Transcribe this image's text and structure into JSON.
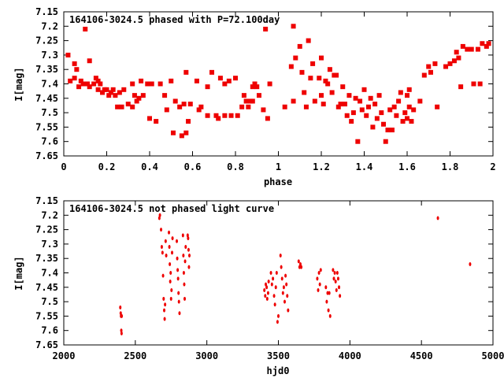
{
  "chart_data": [
    {
      "type": "scatter",
      "title": "164106-3024.5 phased with P=72.100day",
      "xlabel": "phase",
      "ylabel": "I[mag]",
      "xlim": [
        0,
        2
      ],
      "ylim": [
        7.65,
        7.15
      ],
      "y_inverted": true,
      "marker_color": "#ee0000",
      "x_ticks": [
        "0",
        "0.2",
        "0.4",
        "0.6",
        "0.8",
        "1",
        "1.2",
        "1.4",
        "1.6",
        "1.8",
        "2"
      ],
      "y_ticks": [
        "7.15",
        "7.2",
        "7.25",
        "7.3",
        "7.35",
        "7.4",
        "7.45",
        "7.5",
        "7.55",
        "7.6",
        "7.65"
      ],
      "points": [
        [
          0.02,
          7.3
        ],
        [
          0.03,
          7.39
        ],
        [
          0.05,
          7.38
        ],
        [
          0.05,
          7.33
        ],
        [
          0.06,
          7.35
        ],
        [
          0.07,
          7.41
        ],
        [
          0.08,
          7.39
        ],
        [
          0.09,
          7.4
        ],
        [
          0.1,
          7.21
        ],
        [
          0.11,
          7.4
        ],
        [
          0.12,
          7.32
        ],
        [
          0.12,
          7.41
        ],
        [
          0.14,
          7.4
        ],
        [
          0.15,
          7.38
        ],
        [
          0.16,
          7.39
        ],
        [
          0.16,
          7.42
        ],
        [
          0.17,
          7.4
        ],
        [
          0.18,
          7.43
        ],
        [
          0.19,
          7.42
        ],
        [
          0.2,
          7.42
        ],
        [
          0.21,
          7.44
        ],
        [
          0.22,
          7.43
        ],
        [
          0.23,
          7.42
        ],
        [
          0.24,
          7.44
        ],
        [
          0.25,
          7.48
        ],
        [
          0.26,
          7.43
        ],
        [
          0.27,
          7.48
        ],
        [
          0.28,
          7.42
        ],
        [
          0.3,
          7.47
        ],
        [
          0.32,
          7.4
        ],
        [
          0.32,
          7.48
        ],
        [
          0.33,
          7.44
        ],
        [
          0.34,
          7.46
        ],
        [
          0.35,
          7.45
        ],
        [
          0.36,
          7.39
        ],
        [
          0.37,
          7.44
        ],
        [
          0.39,
          7.4
        ],
        [
          0.4,
          7.52
        ],
        [
          0.41,
          7.4
        ],
        [
          0.43,
          7.53
        ],
        [
          0.45,
          7.4
        ],
        [
          0.47,
          7.44
        ],
        [
          0.48,
          7.49
        ],
        [
          0.5,
          7.39
        ],
        [
          0.51,
          7.57
        ],
        [
          0.52,
          7.46
        ],
        [
          0.54,
          7.48
        ],
        [
          0.55,
          7.58
        ],
        [
          0.56,
          7.47
        ],
        [
          0.57,
          7.36
        ],
        [
          0.57,
          7.57
        ],
        [
          0.58,
          7.53
        ],
        [
          0.59,
          7.47
        ],
        [
          0.62,
          7.39
        ],
        [
          0.63,
          7.49
        ],
        [
          0.64,
          7.48
        ],
        [
          0.67,
          7.51
        ],
        [
          0.67,
          7.41
        ],
        [
          0.69,
          7.36
        ],
        [
          0.71,
          7.51
        ],
        [
          0.72,
          7.52
        ],
        [
          0.73,
          7.38
        ],
        [
          0.75,
          7.51
        ],
        [
          0.75,
          7.4
        ],
        [
          0.77,
          7.39
        ],
        [
          0.78,
          7.51
        ],
        [
          0.8,
          7.38
        ],
        [
          0.81,
          7.51
        ],
        [
          0.83,
          7.48
        ],
        [
          0.84,
          7.44
        ],
        [
          0.85,
          7.46
        ],
        [
          0.86,
          7.48
        ],
        [
          0.87,
          7.46
        ],
        [
          0.88,
          7.41
        ],
        [
          0.88,
          7.46
        ],
        [
          0.89,
          7.4
        ],
        [
          0.9,
          7.41
        ],
        [
          0.91,
          7.44
        ],
        [
          0.93,
          7.49
        ],
        [
          0.94,
          7.21
        ],
        [
          0.95,
          7.52
        ],
        [
          0.96,
          7.4
        ],
        [
          1.03,
          7.48
        ],
        [
          1.06,
          7.34
        ],
        [
          1.07,
          7.2
        ],
        [
          1.07,
          7.46
        ],
        [
          1.08,
          7.31
        ],
        [
          1.1,
          7.27
        ],
        [
          1.11,
          7.36
        ],
        [
          1.12,
          7.43
        ],
        [
          1.13,
          7.48
        ],
        [
          1.14,
          7.25
        ],
        [
          1.15,
          7.38
        ],
        [
          1.16,
          7.33
        ],
        [
          1.17,
          7.46
        ],
        [
          1.19,
          7.38
        ],
        [
          1.2,
          7.31
        ],
        [
          1.2,
          7.44
        ],
        [
          1.21,
          7.47
        ],
        [
          1.22,
          7.39
        ],
        [
          1.23,
          7.4
        ],
        [
          1.24,
          7.35
        ],
        [
          1.25,
          7.43
        ],
        [
          1.26,
          7.37
        ],
        [
          1.27,
          7.37
        ],
        [
          1.28,
          7.48
        ],
        [
          1.29,
          7.47
        ],
        [
          1.3,
          7.41
        ],
        [
          1.31,
          7.47
        ],
        [
          1.32,
          7.51
        ],
        [
          1.33,
          7.44
        ],
        [
          1.34,
          7.53
        ],
        [
          1.35,
          7.5
        ],
        [
          1.36,
          7.45
        ],
        [
          1.37,
          7.6
        ],
        [
          1.38,
          7.46
        ],
        [
          1.39,
          7.49
        ],
        [
          1.4,
          7.42
        ],
        [
          1.41,
          7.51
        ],
        [
          1.42,
          7.48
        ],
        [
          1.43,
          7.45
        ],
        [
          1.44,
          7.55
        ],
        [
          1.45,
          7.47
        ],
        [
          1.46,
          7.52
        ],
        [
          1.47,
          7.44
        ],
        [
          1.48,
          7.5
        ],
        [
          1.49,
          7.54
        ],
        [
          1.5,
          7.6
        ],
        [
          1.51,
          7.56
        ],
        [
          1.52,
          7.49
        ],
        [
          1.53,
          7.56
        ],
        [
          1.54,
          7.48
        ],
        [
          1.55,
          7.51
        ],
        [
          1.56,
          7.46
        ],
        [
          1.57,
          7.43
        ],
        [
          1.58,
          7.53
        ],
        [
          1.59,
          7.5
        ],
        [
          1.6,
          7.44
        ],
        [
          1.6,
          7.52
        ],
        [
          1.61,
          7.42
        ],
        [
          1.61,
          7.48
        ],
        [
          1.62,
          7.53
        ],
        [
          1.63,
          7.49
        ],
        [
          1.66,
          7.46
        ],
        [
          1.68,
          7.37
        ],
        [
          1.7,
          7.34
        ],
        [
          1.71,
          7.36
        ],
        [
          1.73,
          7.33
        ],
        [
          1.74,
          7.48
        ],
        [
          1.78,
          7.34
        ],
        [
          1.8,
          7.33
        ],
        [
          1.82,
          7.32
        ],
        [
          1.83,
          7.29
        ],
        [
          1.84,
          7.31
        ],
        [
          1.85,
          7.41
        ],
        [
          1.86,
          7.27
        ],
        [
          1.88,
          7.28
        ],
        [
          1.9,
          7.28
        ],
        [
          1.91,
          7.4
        ],
        [
          1.93,
          7.28
        ],
        [
          1.94,
          7.4
        ],
        [
          1.95,
          7.26
        ],
        [
          1.97,
          7.27
        ],
        [
          1.98,
          7.26
        ]
      ]
    },
    {
      "type": "scatter",
      "title": "164106-3024.5 not phased light curve",
      "xlabel": "hjd0",
      "ylabel": "I[mag]",
      "xlim": [
        2000,
        5000
      ],
      "ylim": [
        7.65,
        7.15
      ],
      "y_inverted": true,
      "marker_color": "#ee0000",
      "x_ticks": [
        "2000",
        "2500",
        "3000",
        "3500",
        "4000",
        "4500",
        "5000"
      ],
      "y_ticks": [
        "7.15",
        "7.2",
        "7.25",
        "7.3",
        "7.35",
        "7.4",
        "7.45",
        "7.5",
        "7.55",
        "7.6",
        "7.65"
      ],
      "points": [
        [
          2395,
          7.52
        ],
        [
          2398,
          7.54
        ],
        [
          2400,
          7.55
        ],
        [
          2402,
          7.6
        ],
        [
          2404,
          7.61
        ],
        [
          2405,
          7.55
        ],
        [
          2668,
          7.21
        ],
        [
          2672,
          7.2
        ],
        [
          2680,
          7.25
        ],
        [
          2685,
          7.31
        ],
        [
          2690,
          7.33
        ],
        [
          2694,
          7.41
        ],
        [
          2698,
          7.49
        ],
        [
          2702,
          7.53
        ],
        [
          2705,
          7.56
        ],
        [
          2708,
          7.51
        ],
        [
          2712,
          7.29
        ],
        [
          2716,
          7.34
        ],
        [
          2735,
          7.26
        ],
        [
          2738,
          7.31
        ],
        [
          2741,
          7.37
        ],
        [
          2744,
          7.43
        ],
        [
          2747,
          7.4
        ],
        [
          2750,
          7.49
        ],
        [
          2753,
          7.46
        ],
        [
          2757,
          7.33
        ],
        [
          2760,
          7.28
        ],
        [
          2790,
          7.29
        ],
        [
          2793,
          7.35
        ],
        [
          2796,
          7.39
        ],
        [
          2799,
          7.42
        ],
        [
          2802,
          7.47
        ],
        [
          2805,
          7.5
        ],
        [
          2809,
          7.54
        ],
        [
          2833,
          7.27
        ],
        [
          2836,
          7.34
        ],
        [
          2839,
          7.4
        ],
        [
          2842,
          7.44
        ],
        [
          2845,
          7.49
        ],
        [
          2848,
          7.36
        ],
        [
          2852,
          7.31
        ],
        [
          2866,
          7.27
        ],
        [
          2869,
          7.28
        ],
        [
          2872,
          7.32
        ],
        [
          2875,
          7.38
        ],
        [
          2878,
          7.34
        ],
        [
          3402,
          7.46
        ],
        [
          3408,
          7.48
        ],
        [
          3412,
          7.44
        ],
        [
          3418,
          7.45
        ],
        [
          3422,
          7.49
        ],
        [
          3428,
          7.47
        ],
        [
          3432,
          7.43
        ],
        [
          3448,
          7.4
        ],
        [
          3455,
          7.44
        ],
        [
          3462,
          7.42
        ],
        [
          3470,
          7.48
        ],
        [
          3476,
          7.51
        ],
        [
          3482,
          7.45
        ],
        [
          3488,
          7.4
        ],
        [
          3494,
          7.57
        ],
        [
          3500,
          7.55
        ],
        [
          3515,
          7.34
        ],
        [
          3520,
          7.38
        ],
        [
          3526,
          7.42
        ],
        [
          3532,
          7.47
        ],
        [
          3538,
          7.45
        ],
        [
          3544,
          7.5
        ],
        [
          3550,
          7.41
        ],
        [
          3556,
          7.44
        ],
        [
          3562,
          7.48
        ],
        [
          3568,
          7.53
        ],
        [
          3642,
          7.36
        ],
        [
          3648,
          7.38
        ],
        [
          3654,
          7.37
        ],
        [
          3660,
          7.38
        ],
        [
          3772,
          7.42
        ],
        [
          3778,
          7.46
        ],
        [
          3784,
          7.4
        ],
        [
          3790,
          7.44
        ],
        [
          3796,
          7.39
        ],
        [
          3832,
          7.45
        ],
        [
          3838,
          7.5
        ],
        [
          3844,
          7.47
        ],
        [
          3850,
          7.53
        ],
        [
          3856,
          7.47
        ],
        [
          3862,
          7.55
        ],
        [
          3882,
          7.39
        ],
        [
          3888,
          7.42
        ],
        [
          3894,
          7.4
        ],
        [
          3900,
          7.43
        ],
        [
          3906,
          7.46
        ],
        [
          3912,
          7.4
        ],
        [
          3918,
          7.42
        ],
        [
          3924,
          7.45
        ],
        [
          3930,
          7.48
        ],
        [
          4615,
          7.21
        ],
        [
          4840,
          7.37
        ]
      ]
    }
  ]
}
